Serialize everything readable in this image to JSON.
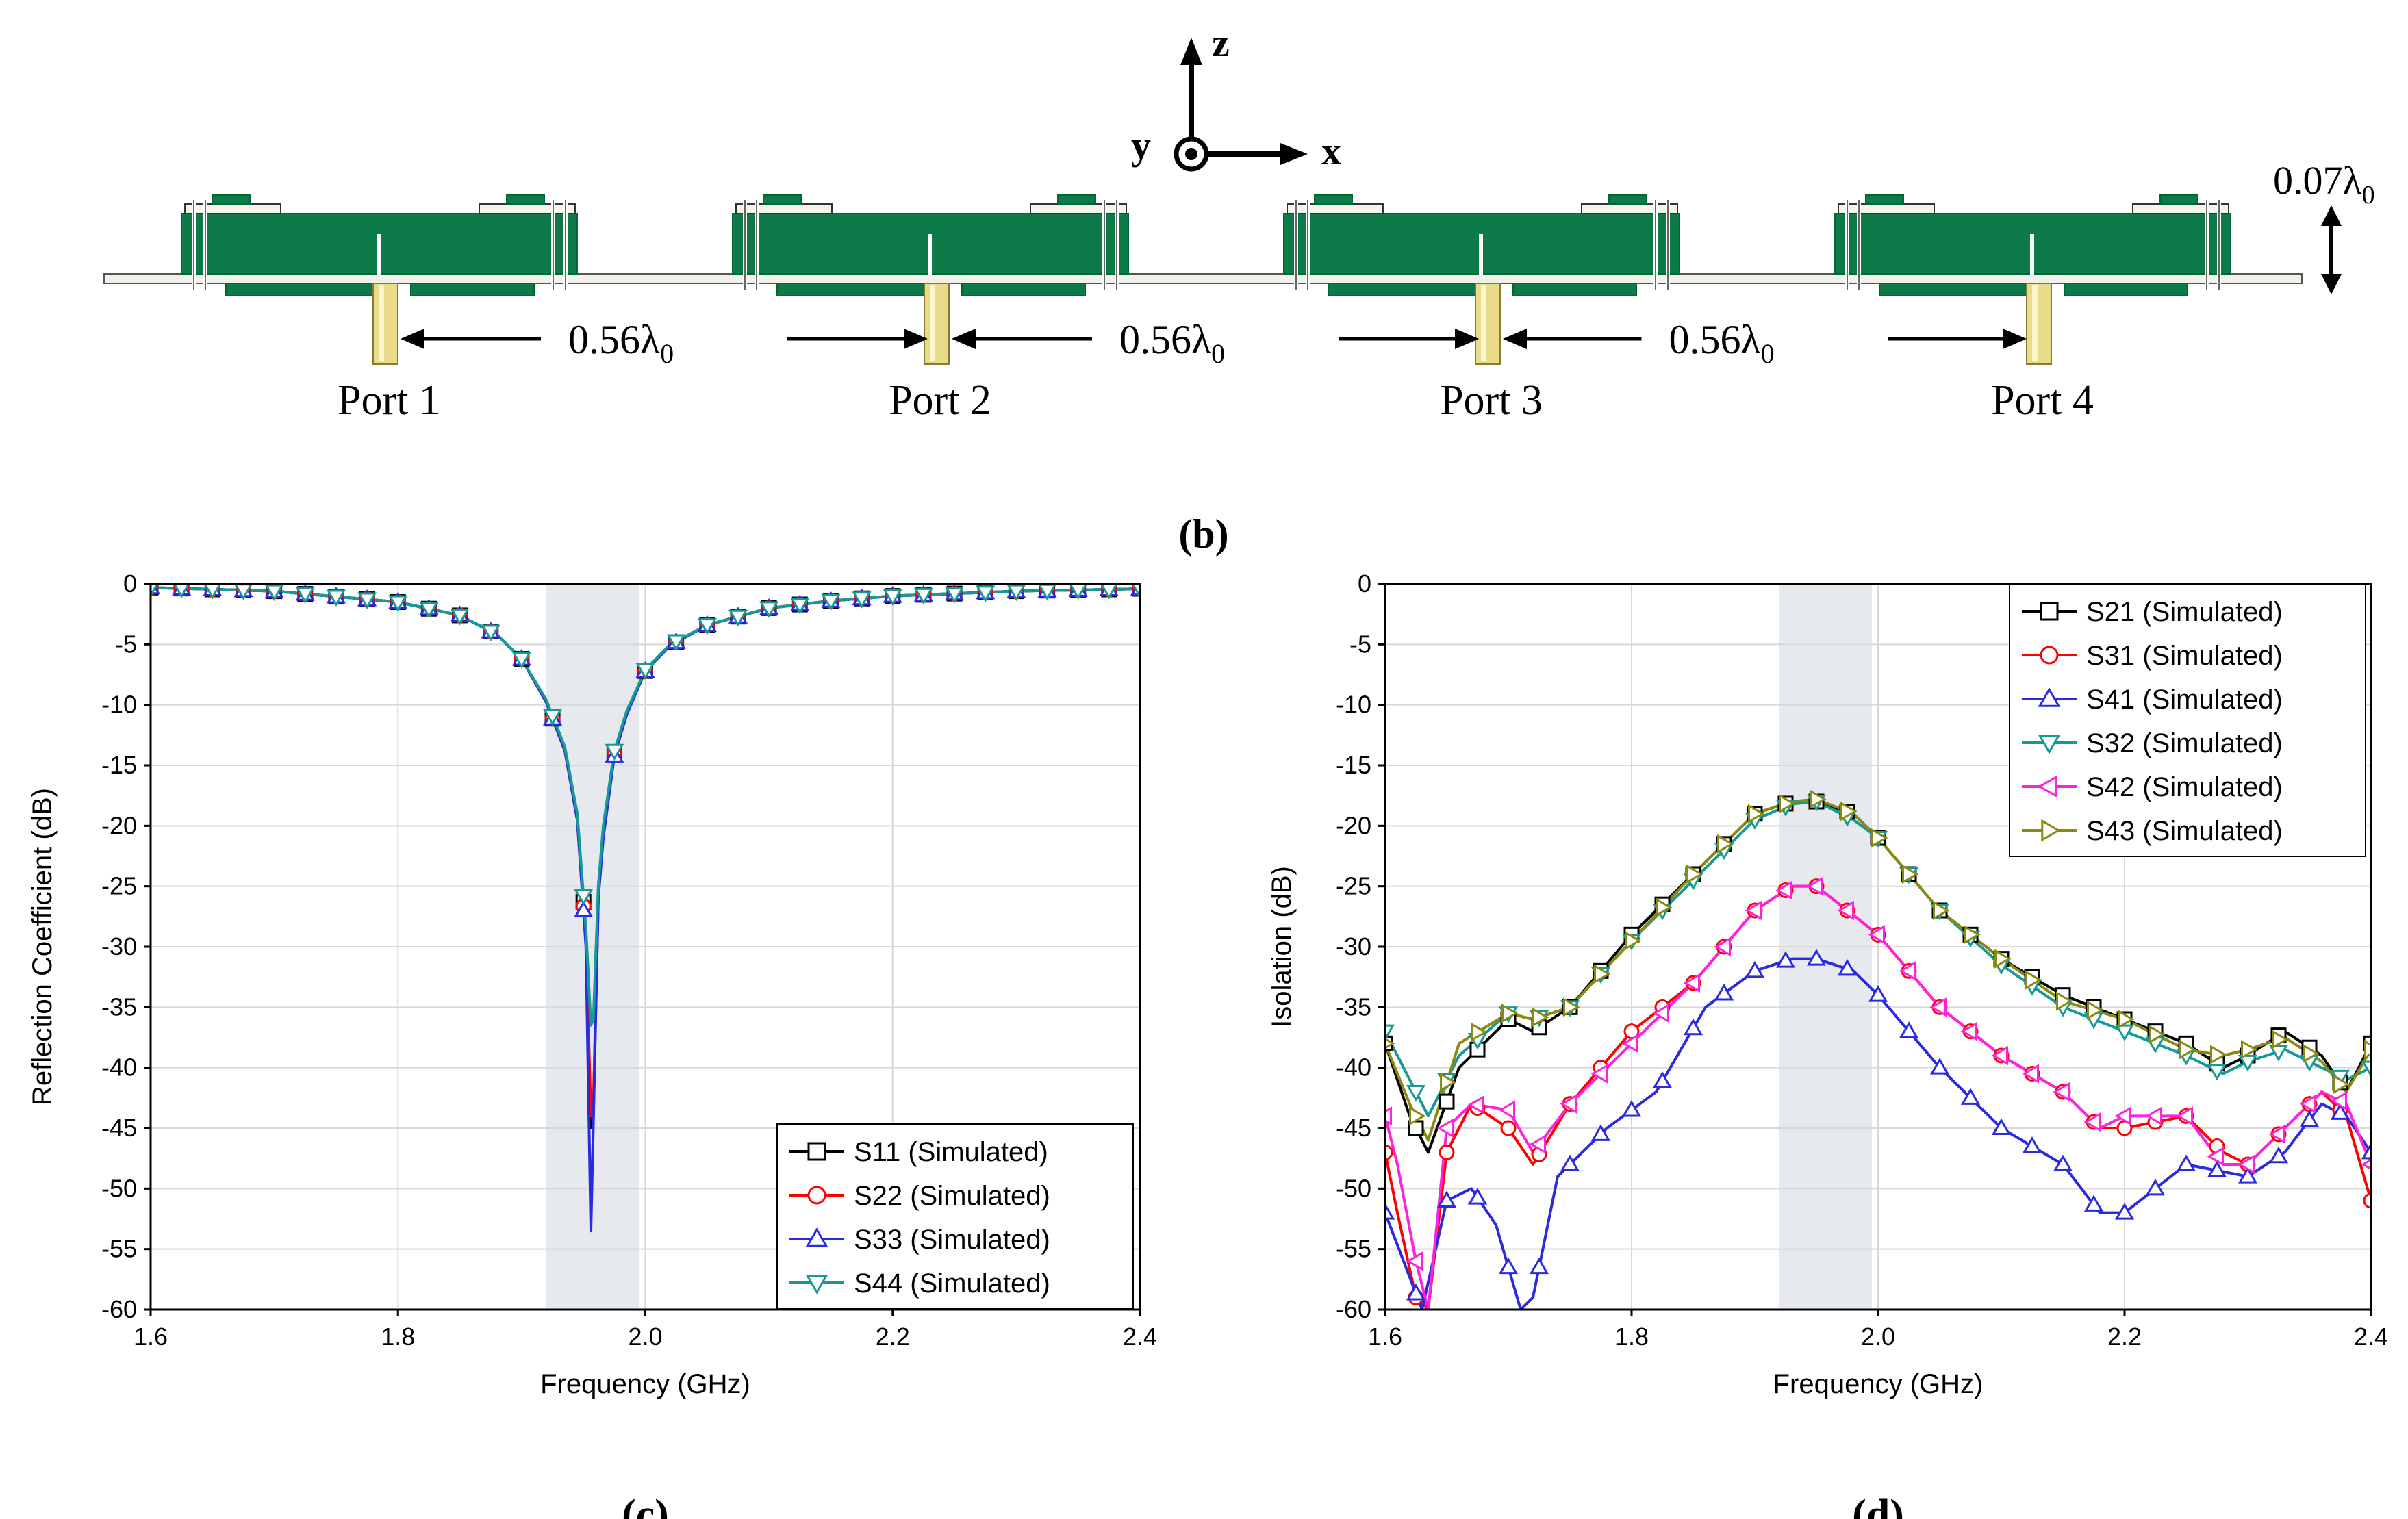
{
  "antenna_figure": {
    "panel_label": "(b)",
    "axis_z": "z",
    "axis_x": "x",
    "axis_y": "y",
    "height_label": "0.07λ",
    "height_sub": "0",
    "spacing_label": "0.56λ",
    "spacing_sub": "0",
    "ports": [
      "Port 1",
      "Port 2",
      "Port 3",
      "Port 4"
    ],
    "colors": {
      "pcb": "#0d7a4a",
      "pcb_dark": "#0a5c37",
      "port": "#e8dc8a",
      "ground": "#f2f0ea"
    }
  },
  "chart_data": [
    {
      "panel_label": "(c)",
      "type": "line",
      "xlabel": "Frequency (GHz)",
      "ylabel": "Reflection Coefficient (dB)",
      "xlim": [
        1.6,
        2.4
      ],
      "ylim": [
        -60,
        0
      ],
      "xticks": [
        "1.6",
        "1.8",
        "2.0",
        "2.2",
        "2.4"
      ],
      "yticks": [
        "0",
        "-5",
        "-10",
        "-15",
        "-20",
        "-25",
        "-30",
        "-35",
        "-40",
        "-45",
        "-50",
        "-55",
        "-60"
      ],
      "band": [
        1.92,
        1.995
      ],
      "grid": true,
      "legend_position": "bottom-right",
      "series": [
        {
          "name": "S11 (Simulated)",
          "marker": "square",
          "color": "#000000",
          "x": [
            1.6,
            1.7,
            1.8,
            1.85,
            1.88,
            1.9,
            1.92,
            1.935,
            1.945,
            1.952,
            1.956,
            1.958,
            1.962,
            1.966,
            1.975,
            1.985,
            2.0,
            2.02,
            2.05,
            2.1,
            2.15,
            2.2,
            2.3,
            2.4
          ],
          "y": [
            -0.3,
            -0.6,
            -1.5,
            -2.6,
            -4.2,
            -6.2,
            -9.8,
            -13.8,
            -19.5,
            -29.0,
            -45.0,
            -44.0,
            -26.0,
            -20.5,
            -14.0,
            -10.7,
            -7.2,
            -5.1,
            -3.4,
            -2.0,
            -1.4,
            -1.0,
            -0.6,
            -0.4
          ]
        },
        {
          "name": "S22 (Simulated)",
          "marker": "circle",
          "color": "#ff0000",
          "x": [
            1.6,
            1.7,
            1.8,
            1.85,
            1.88,
            1.9,
            1.92,
            1.935,
            1.945,
            1.952,
            1.956,
            1.958,
            1.962,
            1.966,
            1.975,
            1.985,
            2.0,
            2.02,
            2.05,
            2.1,
            2.15,
            2.2,
            2.3,
            2.4
          ],
          "y": [
            -0.3,
            -0.6,
            -1.5,
            -2.6,
            -4.2,
            -6.2,
            -9.8,
            -13.8,
            -19.5,
            -29.5,
            -44.0,
            -43.0,
            -25.5,
            -20.5,
            -14.0,
            -10.7,
            -7.2,
            -5.1,
            -3.4,
            -2.0,
            -1.4,
            -1.0,
            -0.6,
            -0.4
          ]
        },
        {
          "name": "S33 (Simulated)",
          "marker": "triangle-up",
          "color": "#2a2ae0",
          "x": [
            1.6,
            1.7,
            1.8,
            1.85,
            1.88,
            1.9,
            1.92,
            1.935,
            1.945,
            1.952,
            1.956,
            1.958,
            1.962,
            1.966,
            1.975,
            1.985,
            2.0,
            2.02,
            2.05,
            2.1,
            2.15,
            2.2,
            2.3,
            2.4
          ],
          "y": [
            -0.3,
            -0.6,
            -1.5,
            -2.6,
            -4.2,
            -6.2,
            -9.8,
            -13.8,
            -19.5,
            -30.0,
            -53.5,
            -44.5,
            -26.0,
            -21.0,
            -14.2,
            -10.8,
            -7.2,
            -5.1,
            -3.4,
            -2.0,
            -1.4,
            -1.0,
            -0.6,
            -0.4
          ]
        },
        {
          "name": "S44 (Simulated)",
          "marker": "triangle-down",
          "color": "#159a96",
          "x": [
            1.6,
            1.7,
            1.8,
            1.85,
            1.88,
            1.9,
            1.92,
            1.935,
            1.945,
            1.952,
            1.956,
            1.958,
            1.962,
            1.966,
            1.975,
            1.985,
            2.0,
            2.02,
            2.05,
            2.1,
            2.15,
            2.2,
            2.3,
            2.4
          ],
          "y": [
            -0.3,
            -0.6,
            -1.5,
            -2.6,
            -4.2,
            -6.2,
            -9.6,
            -13.5,
            -19.0,
            -28.5,
            -36.5,
            -36.0,
            -25.0,
            -20.0,
            -13.8,
            -10.5,
            -7.1,
            -5.0,
            -3.4,
            -2.0,
            -1.4,
            -1.0,
            -0.6,
            -0.4
          ]
        }
      ]
    },
    {
      "panel_label": "(d)",
      "type": "line",
      "xlabel": "Frequency (GHz)",
      "ylabel": "Isolation (dB)",
      "xlim": [
        1.6,
        2.4
      ],
      "ylim": [
        -60,
        0
      ],
      "xticks": [
        "1.6",
        "1.8",
        "2.0",
        "2.2",
        "2.4"
      ],
      "yticks": [
        "0",
        "-5",
        "-10",
        "-15",
        "-20",
        "-25",
        "-30",
        "-35",
        "-40",
        "-45",
        "-50",
        "-55",
        "-60"
      ],
      "band": [
        1.92,
        1.995
      ],
      "grid": true,
      "legend_position": "top-right",
      "series": [
        {
          "name": "S21 (Simulated)",
          "marker": "square",
          "color": "#000000",
          "x": [
            1.6,
            1.62,
            1.635,
            1.66,
            1.7,
            1.72,
            1.75,
            1.8,
            1.85,
            1.9,
            1.93,
            1.95,
            1.98,
            2.0,
            2.05,
            2.1,
            2.15,
            2.2,
            2.25,
            2.28,
            2.3,
            2.33,
            2.36,
            2.38,
            2.4
          ],
          "y": [
            -38,
            -44,
            -47,
            -40,
            -36,
            -37,
            -35,
            -29,
            -24,
            -19,
            -18,
            -18,
            -19,
            -21,
            -27,
            -31,
            -34,
            -36,
            -38,
            -40,
            -39,
            -37,
            -39,
            -42,
            -38
          ]
        },
        {
          "name": "S31 (Simulated)",
          "marker": "circle",
          "color": "#ff0000",
          "x": [
            1.6,
            1.61,
            1.625,
            1.635,
            1.65,
            1.67,
            1.7,
            1.72,
            1.75,
            1.8,
            1.85,
            1.9,
            1.93,
            1.95,
            2.0,
            2.05,
            2.1,
            2.15,
            2.18,
            2.2,
            2.25,
            2.28,
            2.3,
            2.33,
            2.36,
            2.38,
            2.4
          ],
          "y": [
            -47,
            -52,
            -59,
            -60,
            -47,
            -43,
            -45,
            -48,
            -43,
            -37,
            -33,
            -27,
            -25,
            -25,
            -29,
            -35,
            -39,
            -42,
            -45,
            -45,
            -44,
            -47,
            -48,
            -45,
            -42,
            -44,
            -51
          ]
        },
        {
          "name": "S41 (Simulated)",
          "marker": "triangle-up",
          "color": "#2a2ae0",
          "x": [
            1.6,
            1.615,
            1.63,
            1.65,
            1.67,
            1.69,
            1.71,
            1.72,
            1.74,
            1.78,
            1.82,
            1.86,
            1.9,
            1.93,
            1.95,
            1.98,
            2.0,
            2.05,
            2.1,
            2.15,
            2.18,
            2.2,
            2.25,
            2.3,
            2.33,
            2.36,
            2.38,
            2.4
          ],
          "y": [
            -52,
            -56,
            -60,
            -51,
            -50,
            -53,
            -60,
            -59,
            -49,
            -45,
            -42,
            -35,
            -32,
            -31,
            -31,
            -32,
            -34,
            -40,
            -45,
            -48,
            -52,
            -52,
            -48,
            -49,
            -47,
            -43,
            -44,
            -47
          ]
        },
        {
          "name": "S32 (Simulated)",
          "marker": "triangle-down",
          "color": "#159a96",
          "x": [
            1.6,
            1.62,
            1.635,
            1.66,
            1.7,
            1.72,
            1.75,
            1.8,
            1.85,
            1.9,
            1.93,
            1.95,
            1.98,
            2.0,
            2.05,
            2.1,
            2.15,
            2.2,
            2.25,
            2.28,
            2.3,
            2.33,
            2.36,
            2.38,
            2.4
          ],
          "y": [
            -37,
            -41,
            -44,
            -39,
            -35.5,
            -36,
            -35,
            -29.5,
            -24.5,
            -19.5,
            -18.2,
            -18,
            -19.5,
            -21,
            -27,
            -31.5,
            -35,
            -37,
            -39,
            -40.5,
            -39.5,
            -38.5,
            -40,
            -41,
            -40
          ]
        },
        {
          "name": "S42 (Simulated)",
          "marker": "triangle-left",
          "color": "#ff22dd",
          "x": [
            1.6,
            1.61,
            1.625,
            1.635,
            1.65,
            1.67,
            1.7,
            1.72,
            1.75,
            1.8,
            1.85,
            1.9,
            1.93,
            1.95,
            2.0,
            2.05,
            2.1,
            2.15,
            2.18,
            2.2,
            2.25,
            2.28,
            2.3,
            2.33,
            2.36,
            2.38,
            2.4
          ],
          "y": [
            -44,
            -48,
            -56,
            -60,
            -45,
            -43,
            -43.5,
            -47,
            -43,
            -38,
            -33,
            -27,
            -25,
            -25,
            -29,
            -35,
            -39,
            -42,
            -45,
            -44,
            -44,
            -48,
            -48,
            -45,
            -42,
            -43,
            -48
          ]
        },
        {
          "name": "S43 (Simulated)",
          "marker": "triangle-right",
          "color": "#8a8a10",
          "x": [
            1.6,
            1.62,
            1.635,
            1.66,
            1.7,
            1.72,
            1.75,
            1.8,
            1.85,
            1.9,
            1.93,
            1.95,
            1.98,
            2.0,
            2.05,
            2.1,
            2.15,
            2.2,
            2.25,
            2.28,
            2.3,
            2.33,
            2.36,
            2.38,
            2.4
          ],
          "y": [
            -38,
            -43,
            -46,
            -38,
            -35.5,
            -36,
            -35,
            -29.5,
            -24,
            -19,
            -18,
            -17.8,
            -19,
            -21,
            -27,
            -31,
            -34.5,
            -36,
            -38.5,
            -39,
            -38.5,
            -37.5,
            -39.5,
            -42,
            -38.5
          ]
        }
      ]
    }
  ]
}
